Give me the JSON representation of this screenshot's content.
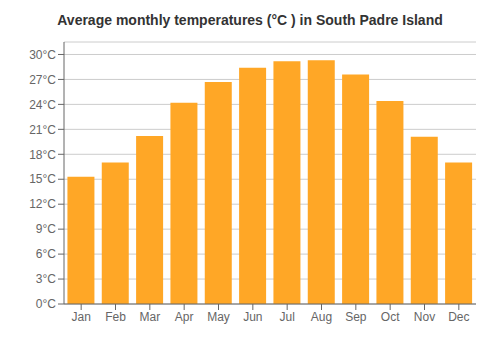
{
  "chart_data": {
    "type": "bar",
    "title": "Average monthly temperatures (°C ) in South Padre Island",
    "categories": [
      "Jan",
      "Feb",
      "Mar",
      "Apr",
      "May",
      "Jun",
      "Jul",
      "Aug",
      "Sep",
      "Oct",
      "Nov",
      "Dec"
    ],
    "values": [
      15.3,
      17.0,
      20.2,
      24.2,
      26.7,
      28.4,
      29.2,
      29.3,
      27.6,
      24.4,
      20.1,
      17.0
    ],
    "color": "#FFA726",
    "ylim": [
      0,
      31.5
    ],
    "yticks": [
      {
        "value": 0,
        "label": "0°C"
      },
      {
        "value": 3,
        "label": "3°C"
      },
      {
        "value": 6,
        "label": "6°C"
      },
      {
        "value": 9,
        "label": "9°C"
      },
      {
        "value": 12,
        "label": "12°C"
      },
      {
        "value": 15,
        "label": "15°C"
      },
      {
        "value": 18,
        "label": "18°C"
      },
      {
        "value": 21,
        "label": "21°C"
      },
      {
        "value": 24,
        "label": "24°C"
      },
      {
        "value": 27,
        "label": "27°C"
      },
      {
        "value": 30,
        "label": "30°C"
      }
    ],
    "grid": true
  }
}
